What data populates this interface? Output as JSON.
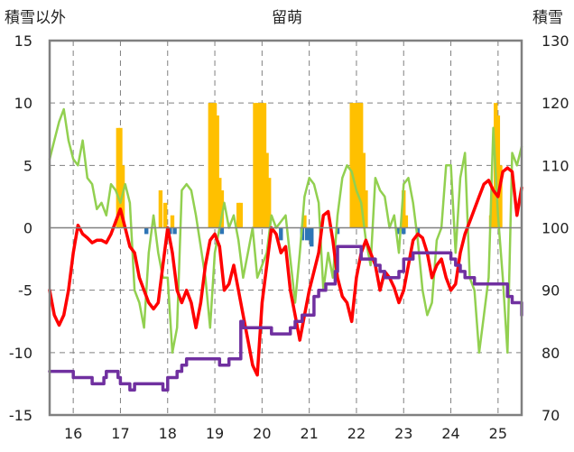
{
  "chart_data": {
    "type": "line",
    "title": "留萌",
    "ylabel_left": "積雪以外",
    "ylabel_right": "積雪",
    "ylim_left": [
      -15,
      15
    ],
    "yticks_left": [
      15,
      10,
      5,
      0,
      -5,
      -10,
      -15
    ],
    "ylim_right": [
      70,
      130
    ],
    "yticks_right": [
      130,
      120,
      110,
      100,
      90,
      80,
      70
    ],
    "xlim": [
      15.5,
      25.5
    ],
    "x_ticks": [
      16,
      17,
      18,
      19,
      20,
      21,
      22,
      23,
      24,
      25
    ],
    "x_tick_labels": [
      "16",
      "17",
      "18",
      "19",
      "20",
      "21",
      "22",
      "23",
      "24",
      "25"
    ],
    "grid": true,
    "colors": {
      "snowfall_bars": "#FFC000",
      "negative_bars": "#2E75B6",
      "temperature_line": "#FF0000",
      "green_line": "#92D050",
      "snow_depth_line": "#7030A0",
      "grid": "#808080"
    },
    "series": [
      {
        "axis": "left",
        "kind": "bar",
        "x": [
          16.95,
          17.0,
          17.05,
          17.85,
          17.95,
          18.1,
          18.9,
          18.95,
          19.0,
          19.05,
          19.1,
          19.15,
          19.5,
          19.55,
          19.85,
          19.9,
          19.95,
          20.0,
          20.05,
          20.1,
          20.15,
          20.9,
          21.9,
          21.95,
          22.0,
          22.05,
          22.1,
          22.15,
          22.2,
          23.0,
          23.05,
          24.85,
          24.9,
          24.95,
          25.0,
          25.05
        ],
        "values": [
          8,
          8,
          5,
          3,
          2,
          1,
          10,
          10,
          10,
          9,
          4,
          3,
          2,
          2,
          10,
          10,
          10,
          10,
          10,
          6,
          4,
          1,
          10,
          10,
          10,
          10,
          10,
          6,
          3,
          3,
          1,
          1,
          3,
          10,
          9,
          5
        ]
      },
      {
        "axis": "left",
        "kind": "bar_negative",
        "x": [
          17.55,
          18.05,
          18.15,
          19.15,
          20.4,
          20.85,
          20.95,
          21.0,
          21.05,
          21.6,
          22.9,
          23.0,
          23.3
        ],
        "values": [
          -0.5,
          -0.5,
          -0.5,
          -0.5,
          -1,
          -1,
          -1,
          -1,
          -1.5,
          -0.5,
          -0.5,
          -0.5,
          -0.5
        ]
      },
      {
        "axis": "left",
        "kind": "line",
        "x": [
          15.5,
          15.6,
          15.7,
          15.8,
          15.9,
          16.0,
          16.1,
          16.2,
          16.3,
          16.4,
          16.5,
          16.6,
          16.7,
          16.8,
          16.9,
          17.0,
          17.1,
          17.2,
          17.3,
          17.4,
          17.5,
          17.6,
          17.7,
          17.8,
          17.9,
          18.0,
          18.1,
          18.2,
          18.3,
          18.4,
          18.5,
          18.6,
          18.7,
          18.8,
          18.9,
          19.0,
          19.1,
          19.2,
          19.3,
          19.4,
          19.5,
          19.6,
          19.7,
          19.8,
          19.9,
          20.0,
          20.1,
          20.2,
          20.3,
          20.4,
          20.5,
          20.6,
          20.7,
          20.8,
          20.9,
          21.0,
          21.1,
          21.2,
          21.3,
          21.4,
          21.5,
          21.6,
          21.7,
          21.8,
          21.9,
          22.0,
          22.1,
          22.2,
          22.3,
          22.4,
          22.5,
          22.6,
          22.7,
          22.8,
          22.9,
          23.0,
          23.1,
          23.2,
          23.3,
          23.4,
          23.5,
          23.6,
          23.7,
          23.8,
          23.9,
          24.0,
          24.1,
          24.2,
          24.3,
          24.4,
          24.5,
          24.6,
          24.7,
          24.8,
          24.9,
          25.0,
          25.1,
          25.2,
          25.3,
          25.4,
          25.5
        ],
        "values": [
          -5,
          -7,
          -7.8,
          -7,
          -5,
          -2,
          0.2,
          -0.5,
          -0.8,
          -1.2,
          -1,
          -1,
          -1.2,
          -0.5,
          0.5,
          1.5,
          0,
          -1.5,
          -2,
          -4,
          -5,
          -6,
          -6.5,
          -6,
          -3,
          0,
          -2,
          -5,
          -6,
          -5,
          -6,
          -8,
          -6,
          -3,
          -1,
          -0.5,
          -1.5,
          -5,
          -4.5,
          -3,
          -5,
          -7,
          -9,
          -11,
          -11.8,
          -6,
          -3,
          0,
          -0.5,
          -2,
          -1.5,
          -5,
          -7,
          -9,
          -7,
          -5,
          -3.5,
          -2,
          1,
          1.3,
          -1,
          -4,
          -5.5,
          -6,
          -7.5,
          -4,
          -2,
          -1,
          -2,
          -3,
          -5,
          -3.5,
          -4,
          -4.8,
          -6,
          -5,
          -3,
          -1,
          -0.5,
          -0.8,
          -2,
          -4,
          -3,
          -2.5,
          -4,
          -5,
          -4.5,
          -2,
          -0.5,
          0.5,
          1.5,
          2.5,
          3.5,
          3.8,
          3,
          2.5,
          4.5,
          4.8,
          4.5,
          1,
          3.2
        ]
      },
      {
        "axis": "left",
        "kind": "line",
        "x": [
          15.5,
          15.6,
          15.7,
          15.8,
          15.9,
          16.0,
          16.1,
          16.2,
          16.3,
          16.4,
          16.5,
          16.6,
          16.7,
          16.8,
          16.9,
          17.0,
          17.1,
          17.2,
          17.3,
          17.4,
          17.5,
          17.6,
          17.7,
          17.8,
          17.9,
          18.0,
          18.1,
          18.2,
          18.3,
          18.4,
          18.5,
          18.6,
          18.7,
          18.8,
          18.9,
          19.0,
          19.1,
          19.2,
          19.3,
          19.4,
          19.5,
          19.6,
          19.7,
          19.8,
          19.9,
          20.0,
          20.1,
          20.2,
          20.3,
          20.4,
          20.5,
          20.6,
          20.7,
          20.8,
          20.9,
          21.0,
          21.1,
          21.2,
          21.3,
          21.4,
          21.5,
          21.6,
          21.7,
          21.8,
          21.9,
          22.0,
          22.1,
          22.2,
          22.3,
          22.4,
          22.5,
          22.6,
          22.7,
          22.8,
          22.9,
          23.0,
          23.1,
          23.2,
          23.3,
          23.4,
          23.5,
          23.6,
          23.7,
          23.8,
          23.9,
          24.0,
          24.1,
          24.2,
          24.3,
          24.4,
          24.5,
          24.6,
          24.7,
          24.8,
          24.9,
          25.0,
          25.1,
          25.2,
          25.3,
          25.4,
          25.5
        ],
        "values": [
          5.5,
          7,
          8.5,
          9.5,
          7,
          5.5,
          5,
          7,
          4,
          3.5,
          1.5,
          2,
          1,
          3.5,
          3,
          2,
          3.5,
          2,
          -5,
          -6,
          -8,
          -2,
          1,
          -2,
          -4,
          -4,
          -10,
          -8,
          3,
          3.5,
          3,
          1,
          -1.5,
          -4,
          -8,
          -2,
          0,
          2,
          0,
          1,
          -1,
          -4,
          -2,
          0,
          -4,
          -3,
          -2,
          1,
          0,
          0.5,
          1,
          -2.5,
          -6,
          -2,
          2.5,
          4,
          3.5,
          2,
          -5,
          -2,
          -4,
          1,
          4,
          5,
          4.5,
          3,
          2,
          -1,
          -3,
          4,
          3,
          2.5,
          0,
          1,
          -2,
          3.5,
          4,
          2,
          -1,
          -5,
          -7,
          -6,
          -1,
          0,
          5,
          5,
          -2,
          4,
          6,
          -4,
          -5,
          -10,
          -7,
          -4,
          8,
          1,
          -4,
          -10,
          6,
          5,
          6.5
        ]
      },
      {
        "axis": "right",
        "kind": "line",
        "x": [
          15.5,
          15.8,
          16.0,
          16.2,
          16.3,
          16.4,
          16.5,
          16.65,
          16.7,
          16.8,
          16.9,
          16.95,
          17.0,
          17.05,
          17.2,
          17.3,
          17.4,
          17.5,
          17.7,
          17.8,
          17.85,
          17.9,
          18.0,
          18.2,
          18.3,
          18.4,
          18.5,
          18.9,
          19.0,
          19.1,
          19.2,
          19.25,
          19.3,
          19.55,
          19.6,
          19.9,
          20.0,
          20.2,
          20.5,
          20.6,
          20.7,
          20.85,
          20.9,
          20.95,
          21.0,
          21.1,
          21.2,
          21.3,
          21.35,
          21.5,
          21.55,
          21.6,
          21.7,
          21.8,
          22.0,
          22.1,
          22.2,
          22.4,
          22.5,
          22.55,
          22.6,
          22.7,
          22.85,
          22.9,
          23.0,
          23.2,
          23.3,
          23.5,
          23.7,
          23.8,
          23.9,
          24.0,
          24.1,
          24.2,
          24.3,
          24.4,
          24.5,
          24.6,
          24.8,
          24.9,
          25.0,
          25.1,
          25.2,
          25.3,
          25.5
        ],
        "values": [
          77,
          77,
          76,
          76,
          76,
          75,
          75,
          76,
          77,
          77,
          77,
          76,
          75,
          75,
          74,
          75,
          75,
          75,
          75,
          75,
          75,
          74,
          76,
          77,
          78,
          79,
          79,
          79,
          79,
          78,
          78,
          78,
          79,
          85,
          84,
          84,
          84,
          83,
          83,
          84,
          85,
          86,
          86,
          86,
          86,
          89,
          90,
          90,
          91,
          91,
          93,
          97,
          97,
          97,
          97,
          95,
          95,
          94,
          93,
          93,
          92,
          92,
          92,
          93,
          95,
          96,
          96,
          96,
          96,
          96,
          96,
          95,
          94,
          93,
          92,
          92,
          91,
          91,
          91,
          91,
          91,
          91,
          89,
          88,
          86
        ]
      }
    ]
  }
}
